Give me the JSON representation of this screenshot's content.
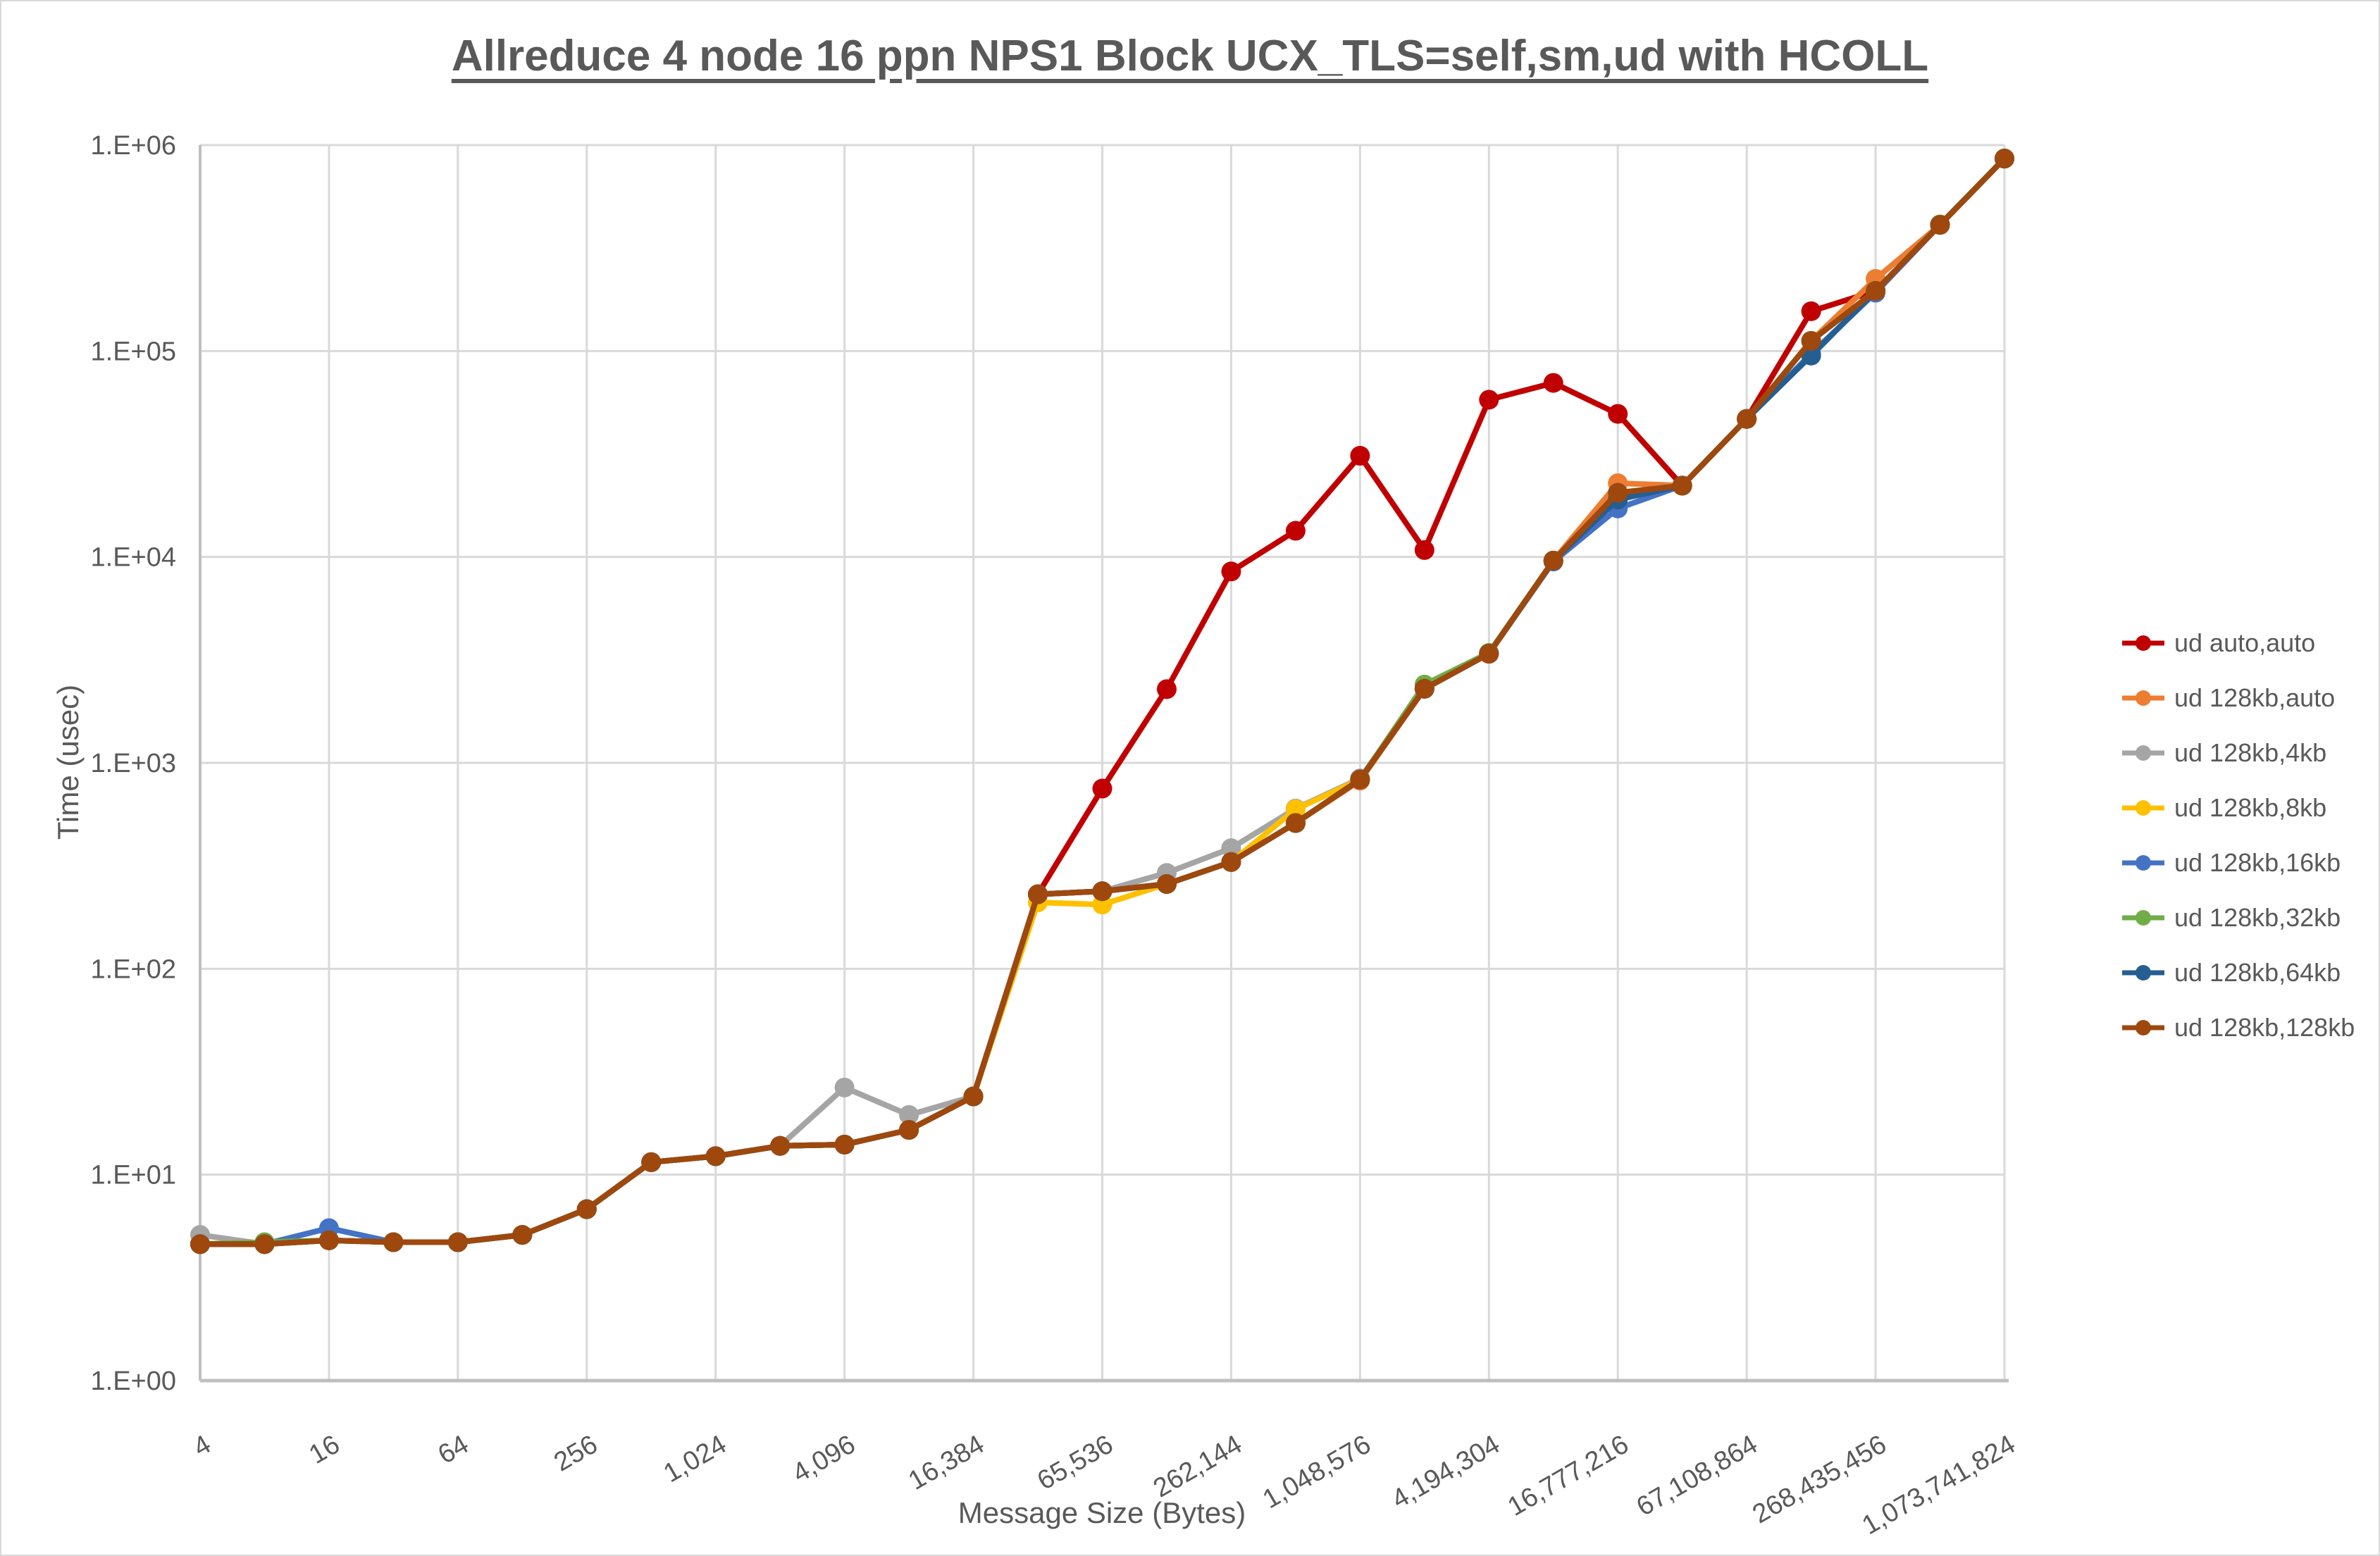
{
  "window": {
    "background": "#FFFFFF",
    "border_color": "#D9D9D9"
  },
  "title": {
    "text": "Allreduce 4 node 16 ppn NPS1 Block UCX_TLS=self,sm,ud with HCOLL",
    "color": "#595959"
  },
  "axes": {
    "y_title": "Time (usec)",
    "x_title": "Message Size (Bytes)",
    "label_color": "#595959",
    "gridline_color": "#D9D9D9",
    "axis_line_color": "#BFBFBF",
    "y_tick_labels": [
      "1.E+00",
      "1.E+01",
      "1.E+02",
      "1.E+03",
      "1.E+04",
      "1.E+05",
      "1.E+06"
    ],
    "x_tick_labels": [
      "4",
      "16",
      "64",
      "256",
      "1,024",
      "4,096",
      "16,384",
      "65,536",
      "262,144",
      "1,048,576",
      "4,194,304",
      "16,777,216",
      "67,108,864",
      "268,435,456",
      "1,073,741,824"
    ]
  },
  "chart_data": {
    "type": "line",
    "x_scale": "log2",
    "y_scale": "log10",
    "xlabel": "Message Size (Bytes)",
    "ylabel": "Time (usec)",
    "xlim": [
      4,
      1073741824
    ],
    "ylim": [
      1,
      1000000
    ],
    "grid": true,
    "legend_position": "right",
    "marker": "circle",
    "categories": [
      4,
      8,
      16,
      32,
      64,
      128,
      256,
      512,
      1024,
      2048,
      4096,
      8192,
      16384,
      32768,
      65536,
      131072,
      262144,
      524288,
      1048576,
      2097152,
      4194304,
      8388608,
      16777216,
      33554432,
      67108864,
      134217728,
      268435456,
      536870912,
      1073741824
    ],
    "x_tick_values": [
      4,
      16,
      64,
      256,
      1024,
      4096,
      16384,
      65536,
      262144,
      1048576,
      4194304,
      16777216,
      67108864,
      268435456,
      1073741824
    ],
    "y_tick_values": [
      1,
      10,
      100,
      1000,
      10000,
      100000,
      1000000
    ],
    "series": [
      {
        "name": "ud auto,auto",
        "color": "#C00000",
        "values": [
          4.6,
          4.6,
          4.8,
          4.7,
          4.7,
          5.1,
          6.8,
          11.5,
          12.3,
          13.8,
          14.0,
          16.5,
          24,
          230,
          750,
          2280,
          8500,
          13400,
          31000,
          10800,
          58000,
          70000,
          49500,
          22200,
          46800,
          156000,
          196000,
          410000,
          860000
        ]
      },
      {
        "name": "ud 128kb,auto",
        "color": "#ED7D31",
        "values": [
          4.6,
          4.6,
          4.8,
          4.7,
          4.7,
          5.1,
          6.8,
          11.5,
          12.3,
          13.8,
          14.0,
          16.5,
          24,
          230,
          238,
          258,
          330,
          510,
          820,
          2290,
          3390,
          9600,
          22800,
          22200,
          46800,
          112000,
          224000,
          410000,
          860000
        ]
      },
      {
        "name": "ud 128kb,4kb",
        "color": "#A5A5A5",
        "values": [
          5.1,
          4.6,
          4.8,
          4.7,
          4.7,
          5.1,
          6.8,
          11.5,
          12.3,
          13.8,
          26.5,
          19.5,
          24,
          230,
          238,
          292,
          385,
          600,
          840,
          2290,
          3390,
          9600,
          20500,
          22200,
          46800,
          112000,
          196000,
          410000,
          860000
        ]
      },
      {
        "name": "ud 128kb,8kb",
        "color": "#FFC000",
        "values": [
          4.6,
          4.6,
          4.8,
          4.7,
          4.7,
          5.1,
          6.8,
          11.5,
          12.3,
          13.8,
          14.0,
          16.5,
          24,
          210,
          205,
          258,
          330,
          595,
          830,
          2290,
          3390,
          9600,
          20300,
          22200,
          46800,
          112000,
          196000,
          410000,
          860000
        ]
      },
      {
        "name": "ud 128kb,16kb",
        "color": "#4472C4",
        "values": [
          4.6,
          4.6,
          5.5,
          4.7,
          4.7,
          5.1,
          6.8,
          11.5,
          12.3,
          13.8,
          14.0,
          16.5,
          24,
          230,
          238,
          258,
          330,
          510,
          830,
          2290,
          3390,
          9500,
          17200,
          22200,
          46800,
          97000,
          192000,
          410000,
          860000
        ]
      },
      {
        "name": "ud 128kb,32kb",
        "color": "#70AD47",
        "values": [
          4.6,
          4.7,
          4.8,
          4.7,
          4.7,
          5.1,
          6.8,
          11.5,
          12.3,
          13.8,
          14.0,
          16.5,
          24,
          230,
          238,
          258,
          330,
          510,
          830,
          2400,
          3420,
          9600,
          19500,
          22200,
          46800,
          112000,
          196000,
          412000,
          862000
        ]
      },
      {
        "name": "ud 128kb,64kb",
        "color": "#255E91",
        "values": [
          4.6,
          4.6,
          4.8,
          4.7,
          4.7,
          5.1,
          6.8,
          11.5,
          12.3,
          13.8,
          14.0,
          16.5,
          24,
          230,
          238,
          258,
          330,
          510,
          830,
          2290,
          3390,
          9600,
          19000,
          22200,
          46800,
          95000,
          196000,
          410000,
          860000
        ]
      },
      {
        "name": "ud 128kb,128kb",
        "color": "#9E480E",
        "values": [
          4.6,
          4.6,
          4.8,
          4.7,
          4.7,
          5.1,
          6.8,
          11.5,
          12.3,
          13.8,
          14.0,
          16.5,
          24,
          230,
          238,
          258,
          330,
          510,
          830,
          2290,
          3390,
          9600,
          20500,
          22200,
          46800,
          112000,
          196000,
          410000,
          860000
        ]
      }
    ]
  }
}
